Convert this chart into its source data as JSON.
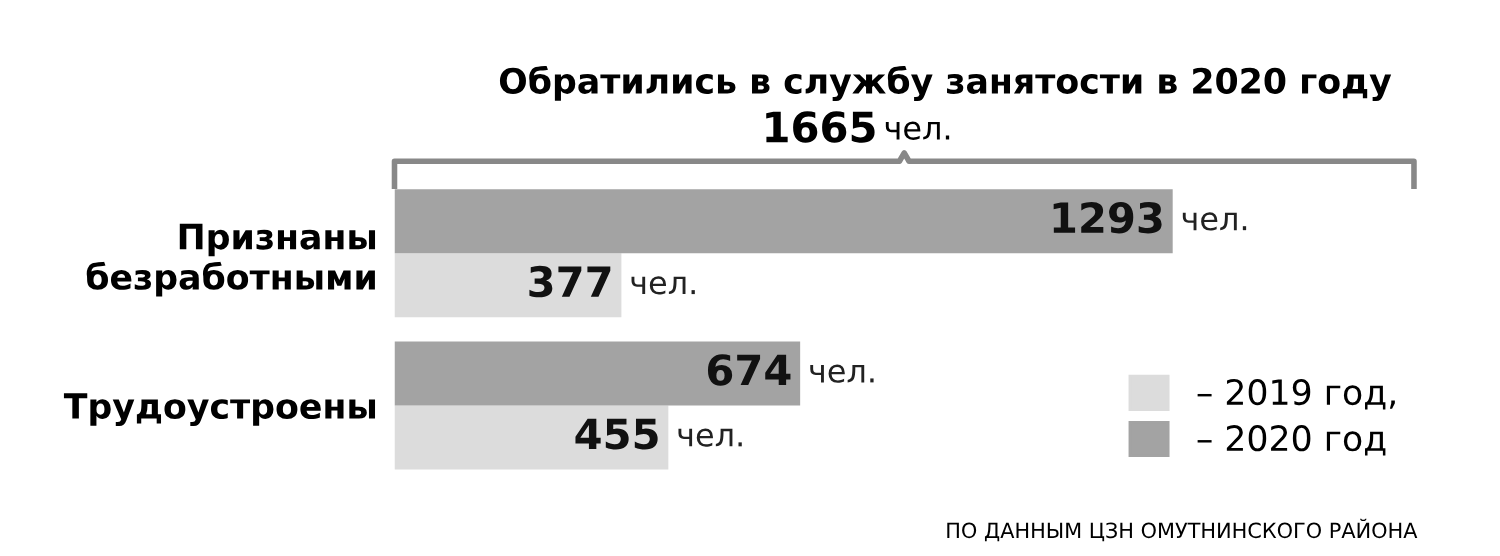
{
  "chart_data": {
    "type": "bar",
    "orientation": "horizontal",
    "title": "Обратились в службу занятости в 2020 году",
    "subtitle": "1665 чел.",
    "categories": [
      "Признаны\nбезработными",
      "Трудоустроены"
    ],
    "series": [
      {
        "name": "– 2019 год,",
        "color": "#dcdcdc",
        "values": [
          377,
          455
        ],
        "value_labels": [
          "377 чел.",
          "455 чел."
        ]
      },
      {
        "name": "– 2020 год",
        "color": "#a3a3a3",
        "values": [
          1293,
          674
        ],
        "value_labels": [
          "1293 чел.",
          "674 чел."
        ]
      }
    ],
    "legend": "bottom right",
    "grid": false,
    "annotations": [
      "ПО ДАННЫМ ЦЗН ОМУТНИНСКОГО РАЙОНА"
    ]
  }
}
